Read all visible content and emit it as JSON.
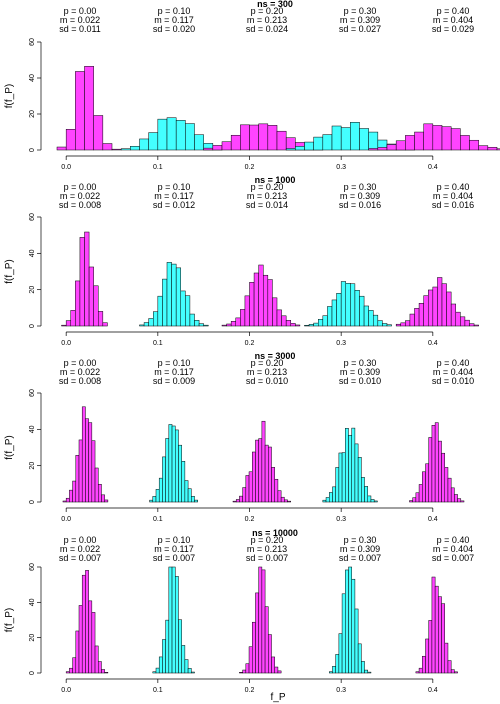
{
  "chart_data": {
    "type": "histogram",
    "xlabel": "f_P",
    "ylabel": "f(f_P)",
    "xlim": [
      -0.01,
      0.47
    ],
    "xticks": [
      "0.0",
      "0.1",
      "0.2",
      "0.3",
      "0.4"
    ],
    "yticks": [
      "0",
      "20",
      "40",
      "60"
    ],
    "ylim": [
      0,
      60
    ],
    "series_colors": [
      "#ff44ff",
      "#44ffff"
    ],
    "panels": [
      {
        "title": "ns = 300",
        "groups": [
          {
            "p": "p = 0.00",
            "m": "m = 0.022",
            "sd": "sd = 0.011",
            "mean": 0.022,
            "spread": 0.011
          },
          {
            "p": "p = 0.10",
            "m": "m = 0.117",
            "sd": "sd = 0.020",
            "mean": 0.117,
            "spread": 0.02
          },
          {
            "p": "p = 0.20",
            "m": "m = 0.213",
            "sd": "sd = 0.024",
            "mean": 0.213,
            "spread": 0.024
          },
          {
            "p": "p = 0.30",
            "m": "m = 0.309",
            "sd": "sd = 0.027",
            "mean": 0.309,
            "spread": 0.027
          },
          {
            "p": "p = 0.40",
            "m": "m = 0.404",
            "sd": "sd = 0.029",
            "mean": 0.404,
            "spread": 0.029
          }
        ]
      },
      {
        "title": "ns = 1000",
        "groups": [
          {
            "p": "p = 0.00",
            "m": "m = 0.022",
            "sd": "sd = 0.008",
            "mean": 0.022,
            "spread": 0.008
          },
          {
            "p": "p = 0.10",
            "m": "m = 0.117",
            "sd": "sd = 0.012",
            "mean": 0.117,
            "spread": 0.012
          },
          {
            "p": "p = 0.20",
            "m": "m = 0.213",
            "sd": "sd = 0.014",
            "mean": 0.213,
            "spread": 0.014
          },
          {
            "p": "p = 0.30",
            "m": "m = 0.309",
            "sd": "sd = 0.016",
            "mean": 0.309,
            "spread": 0.016
          },
          {
            "p": "p = 0.40",
            "m": "m = 0.404",
            "sd": "sd = 0.016",
            "mean": 0.404,
            "spread": 0.016
          }
        ]
      },
      {
        "title": "ns = 3000",
        "groups": [
          {
            "p": "p = 0.00",
            "m": "m = 0.022",
            "sd": "sd = 0.008",
            "mean": 0.022,
            "spread": 0.008
          },
          {
            "p": "p = 0.10",
            "m": "m = 0.117",
            "sd": "sd = 0.009",
            "mean": 0.117,
            "spread": 0.009
          },
          {
            "p": "p = 0.20",
            "m": "m = 0.213",
            "sd": "sd = 0.010",
            "mean": 0.213,
            "spread": 0.01
          },
          {
            "p": "p = 0.30",
            "m": "m = 0.309",
            "sd": "sd = 0.010",
            "mean": 0.309,
            "spread": 0.01
          },
          {
            "p": "p = 0.40",
            "m": "m = 0.404",
            "sd": "sd = 0.010",
            "mean": 0.404,
            "spread": 0.01
          }
        ]
      },
      {
        "title": "ns = 10000",
        "groups": [
          {
            "p": "p = 0.00",
            "m": "m = 0.022",
            "sd": "sd = 0.007",
            "mean": 0.022,
            "spread": 0.007
          },
          {
            "p": "p = 0.10",
            "m": "m = 0.117",
            "sd": "sd = 0.007",
            "mean": 0.117,
            "spread": 0.007
          },
          {
            "p": "p = 0.20",
            "m": "m = 0.213",
            "sd": "sd = 0.007",
            "mean": 0.213,
            "spread": 0.007
          },
          {
            "p": "p = 0.30",
            "m": "m = 0.309",
            "sd": "sd = 0.007",
            "mean": 0.309,
            "spread": 0.007
          },
          {
            "p": "p = 0.40",
            "m": "m = 0.404",
            "sd": "sd = 0.007",
            "mean": 0.404,
            "spread": 0.007
          }
        ]
      }
    ]
  }
}
